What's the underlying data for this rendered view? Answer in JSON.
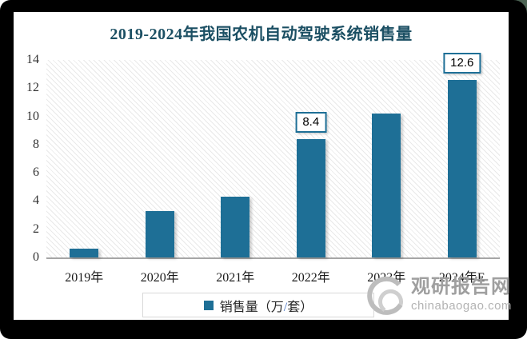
{
  "title": "2019-2024年我国农机自动驾驶系统销售量",
  "chart_data": {
    "type": "bar",
    "title": "2019-2024年我国农机自动驾驶系统销售量",
    "categories": [
      "2019年",
      "2020年",
      "2021年",
      "2022年",
      "2023年",
      "2024年E"
    ],
    "values": [
      0.6,
      3.3,
      4.3,
      8.4,
      10.2,
      12.6
    ],
    "data_labels": [
      null,
      null,
      null,
      "8.4",
      null,
      "12.6"
    ],
    "series_name": "销售量（万/套）",
    "xlabel": "",
    "ylabel": "",
    "ylim": [
      0,
      14
    ],
    "yticks": [
      "0",
      "2",
      "4",
      "6",
      "8",
      "10",
      "12",
      "14"
    ],
    "grid": false,
    "plot_background": "diagonal-hatch",
    "legend_position": "bottom",
    "bar_color": "#1e6f96"
  },
  "legend": {
    "label": "销售量（万/套）",
    "label_pre": "销售量（万",
    "label_slash": "/",
    "label_post": "套）",
    "marker_color": "#1e6f96",
    "slash_color": "#4472c4"
  },
  "watermark": {
    "name": "观研报告网",
    "domain": "chinabaogao.com"
  },
  "colors": {
    "bar": "#1e6f96",
    "title": "#1b4f63",
    "axis_line": "#a6a6a6",
    "tick_text": "#333333",
    "legend_border": "#d9d9d9",
    "watermark_name": "#9f9f9f",
    "watermark_domain": "#b3b3b3",
    "frame": "#000000",
    "corner_accent": "#4c6353"
  }
}
